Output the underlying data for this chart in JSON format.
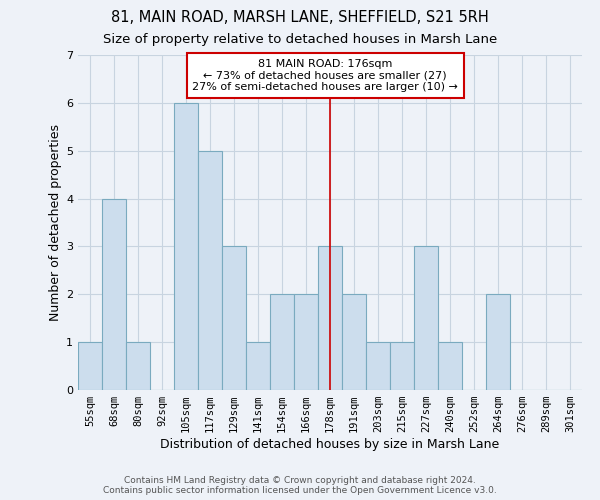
{
  "title": "81, MAIN ROAD, MARSH LANE, SHEFFIELD, S21 5RH",
  "subtitle": "Size of property relative to detached houses in Marsh Lane",
  "xlabel": "Distribution of detached houses by size in Marsh Lane",
  "ylabel": "Number of detached properties",
  "footer_line1": "Contains HM Land Registry data © Crown copyright and database right 2024.",
  "footer_line2": "Contains public sector information licensed under the Open Government Licence v3.0.",
  "bins": [
    "55sqm",
    "68sqm",
    "80sqm",
    "92sqm",
    "105sqm",
    "117sqm",
    "129sqm",
    "141sqm",
    "154sqm",
    "166sqm",
    "178sqm",
    "191sqm",
    "203sqm",
    "215sqm",
    "227sqm",
    "240sqm",
    "252sqm",
    "264sqm",
    "276sqm",
    "289sqm",
    "301sqm"
  ],
  "bar_heights": [
    1,
    4,
    1,
    0,
    6,
    5,
    3,
    1,
    2,
    2,
    3,
    2,
    1,
    1,
    3,
    1,
    0,
    2,
    0,
    0,
    0
  ],
  "bar_color": "#ccdded",
  "bar_edge_color": "#7aaabf",
  "annotation_text": "81 MAIN ROAD: 176sqm\n← 73% of detached houses are smaller (27)\n27% of semi-detached houses are larger (10) →",
  "annotation_box_color": "#cc0000",
  "vline_index": 10,
  "vline_color": "#cc0000",
  "ylim": [
    0,
    7
  ],
  "yticks": [
    0,
    1,
    2,
    3,
    4,
    5,
    6,
    7
  ],
  "grid_color": "#c8d4e0",
  "background_color": "#eef2f8",
  "title_fontsize": 10.5,
  "subtitle_fontsize": 9.5,
  "xlabel_fontsize": 9,
  "ylabel_fontsize": 9,
  "tick_fontsize": 7.5,
  "annotation_fontsize": 8,
  "footer_fontsize": 6.5
}
